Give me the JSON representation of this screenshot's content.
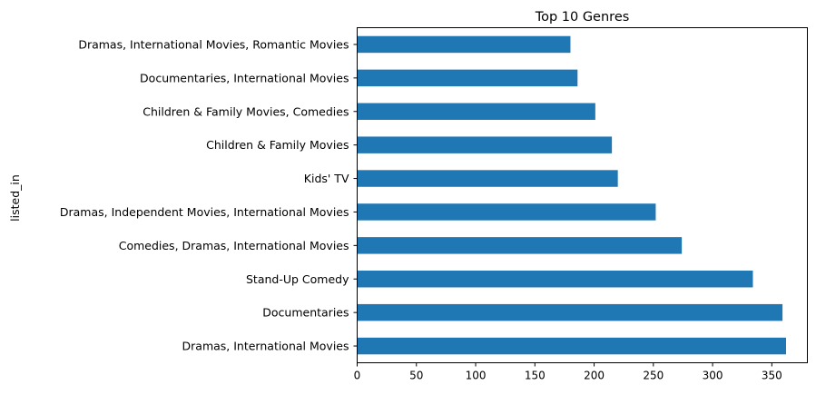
{
  "chart_data": {
    "type": "bar",
    "orientation": "horizontal",
    "title": "Top 10 Genres",
    "xlabel": "",
    "ylabel": "listed_in",
    "xlim": [
      0,
      380
    ],
    "xticks": [
      0,
      50,
      100,
      150,
      200,
      250,
      300,
      350
    ],
    "grid": false,
    "bar_color": "#1f77b4",
    "categories": [
      "Dramas, International Movies",
      "Documentaries",
      "Stand-Up Comedy",
      "Comedies, Dramas, International Movies",
      "Dramas, Independent Movies, International Movies",
      "Kids' TV",
      "Children & Family Movies",
      "Children & Family Movies, Comedies",
      "Documentaries, International Movies",
      "Dramas, International Movies, Romantic Movies"
    ],
    "values": [
      362,
      359,
      334,
      274,
      252,
      220,
      215,
      201,
      186,
      180
    ]
  }
}
